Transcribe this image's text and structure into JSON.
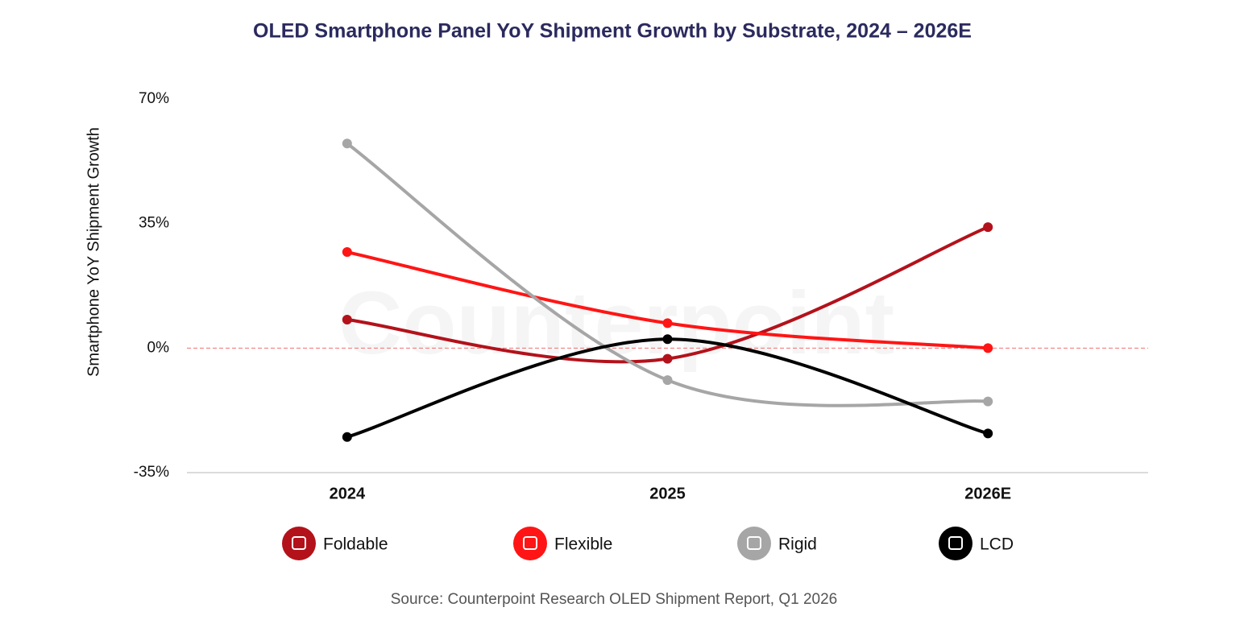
{
  "chart_data": {
    "type": "line",
    "title": "OLED Smartphone Panel YoY Shipment Growth by Substrate, 2024 – 2026E",
    "y_label": "Smartphone YoY Shipment Growth",
    "source": "Source: Counterpoint Research OLED Shipment Report, Q1 2026",
    "watermark": "Counterpoint",
    "categories": [
      "2024",
      "2025",
      "2026E"
    ],
    "series": [
      {
        "name": "Foldable",
        "color": "#b3121b",
        "values": [
          8,
          -3,
          34
        ]
      },
      {
        "name": "Flexible",
        "color": "#ff1515",
        "values": [
          27,
          7,
          0
        ]
      },
      {
        "name": "Rigid",
        "color": "#a6a6a6",
        "values": [
          57.5,
          -9,
          -15
        ]
      },
      {
        "name": "LCD",
        "color": "#000000",
        "values": [
          -25,
          2.5,
          -24
        ]
      }
    ],
    "ylim": [
      -35,
      70
    ],
    "yticks": [
      {
        "value": -35,
        "label": "-35%"
      },
      {
        "value": 0,
        "label": "0%"
      },
      {
        "value": 35,
        "label": "35%"
      },
      {
        "value": 70,
        "label": "70%"
      }
    ],
    "zero_line": true,
    "smooth": true,
    "legend": "bottom"
  }
}
